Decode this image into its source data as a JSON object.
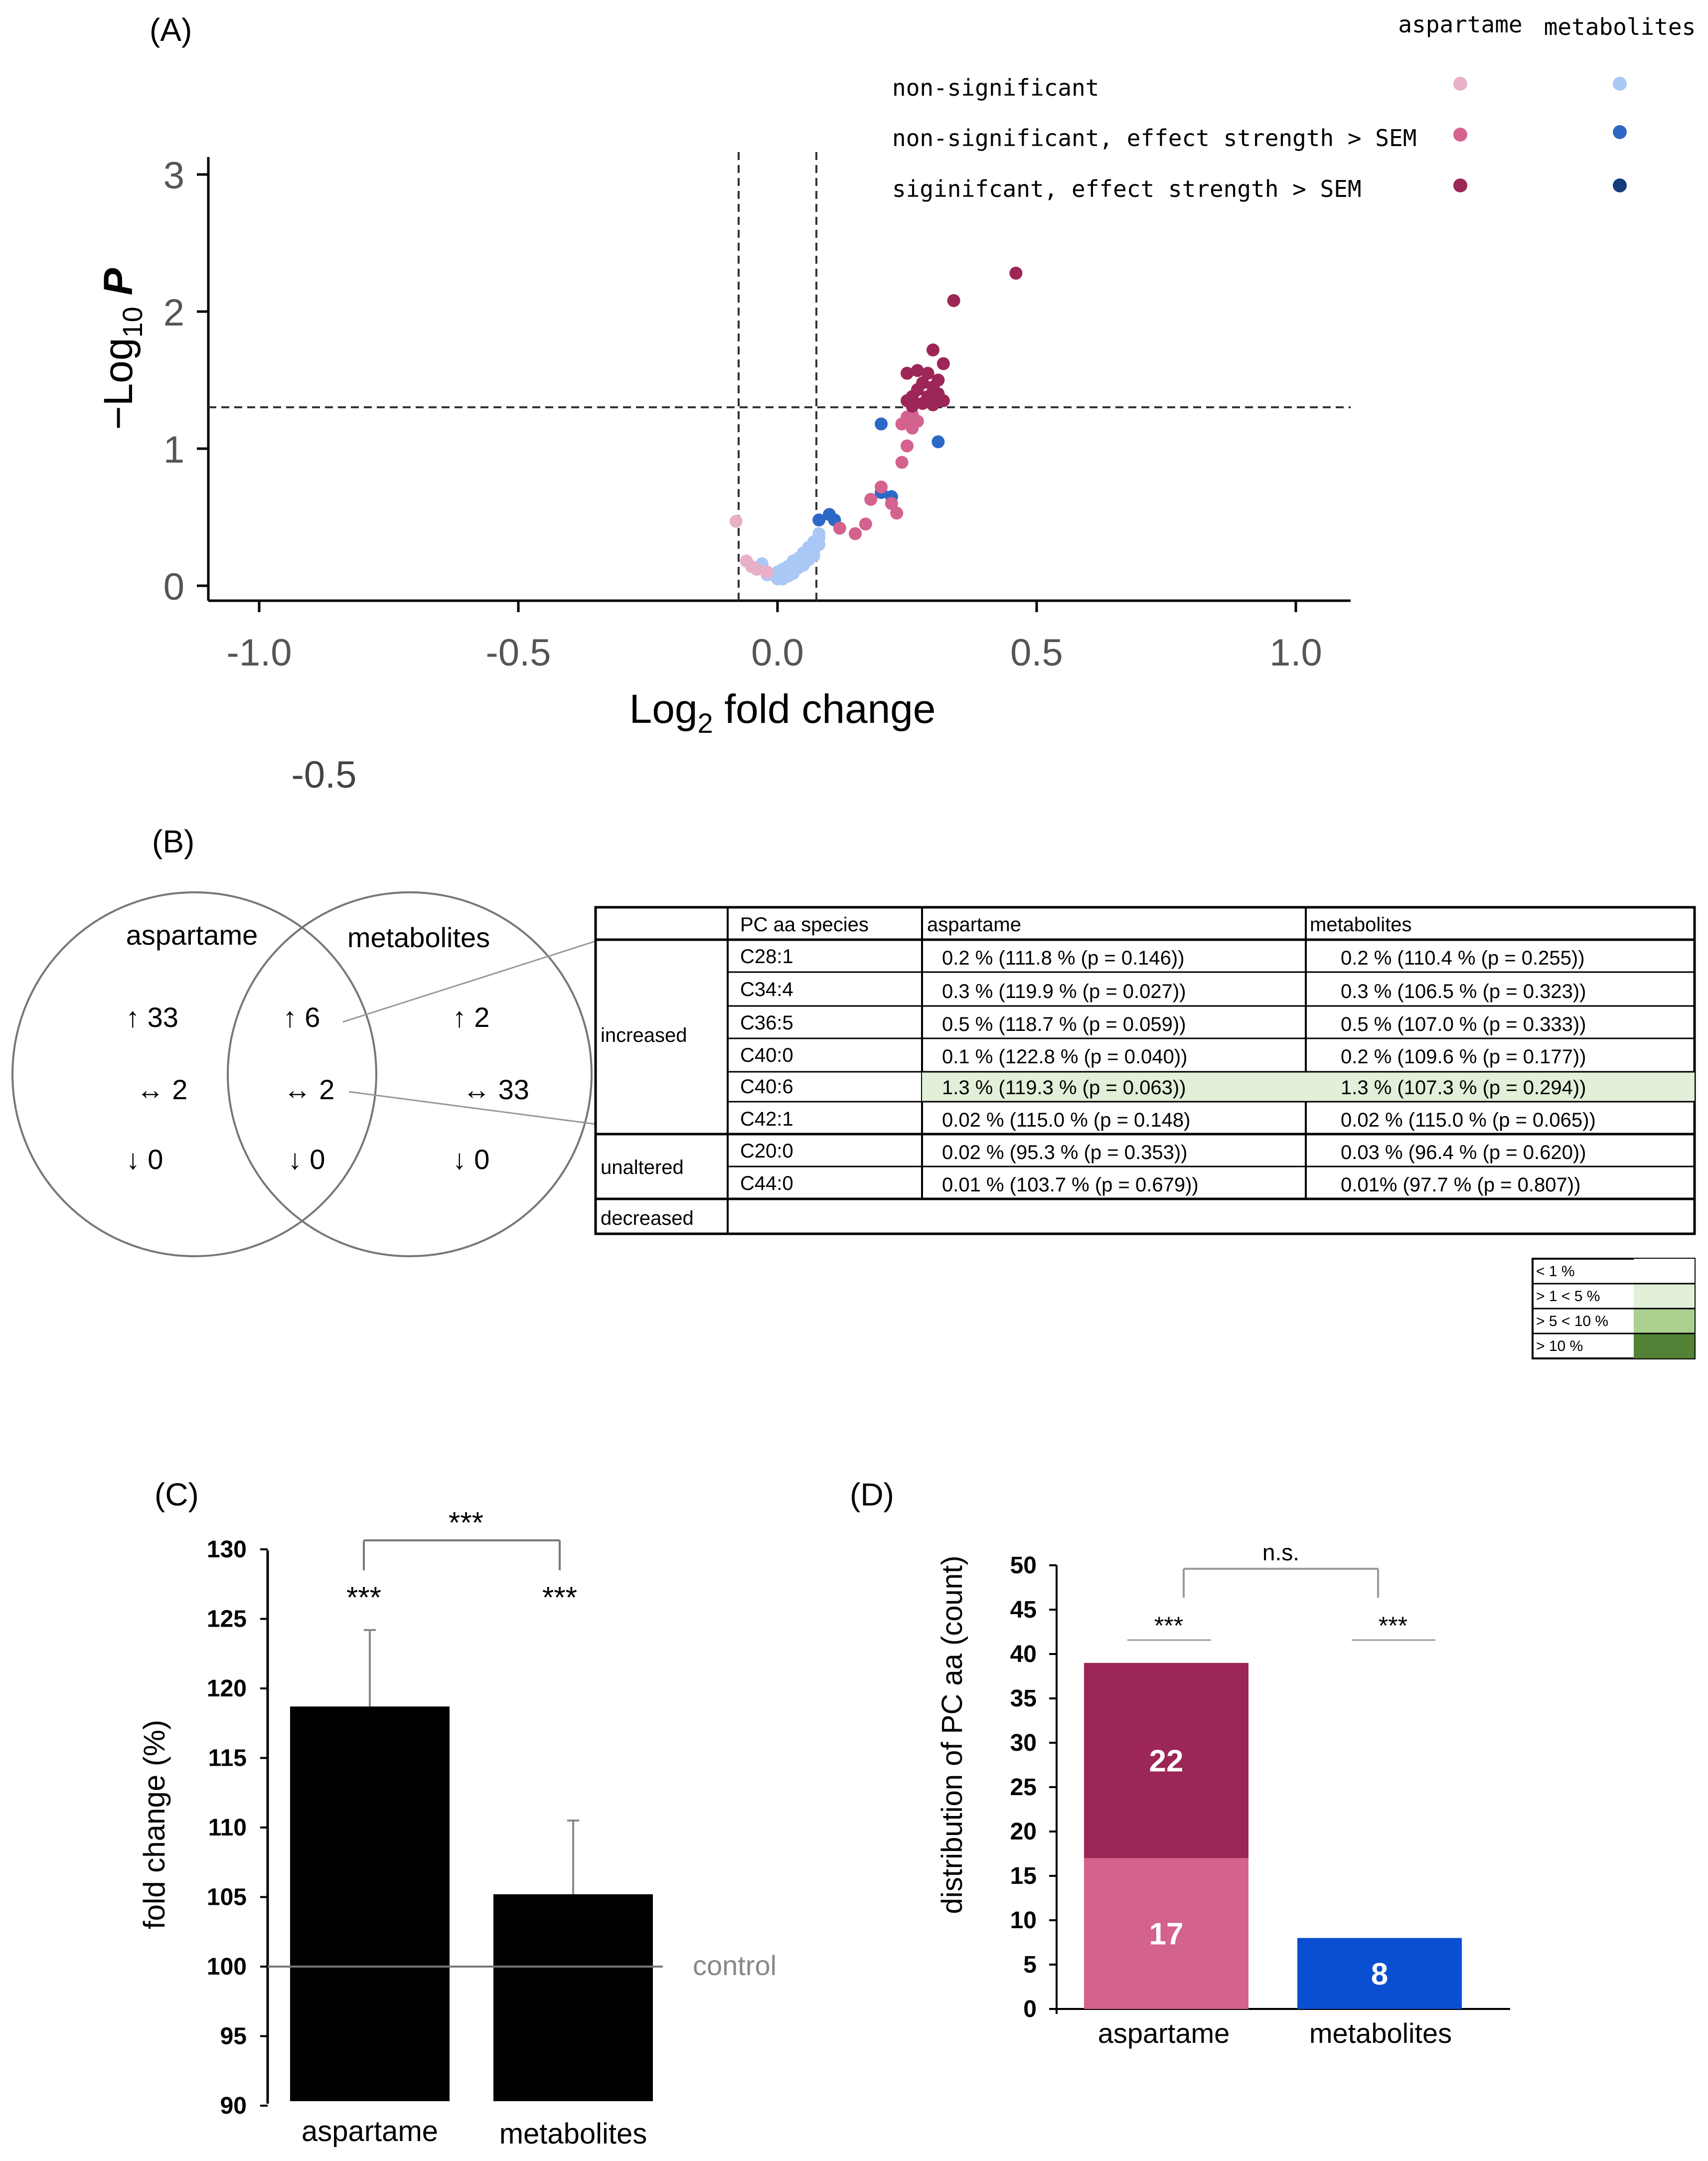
{
  "colors": {
    "asp_nonsig": "#e8afc8",
    "asp_mid": "#d3628e",
    "asp_sig": "#9c2656",
    "met_nonsig": "#a9c8f5",
    "met_mid": "#2c68c6",
    "met_sig": "#143c7c",
    "bar_black": "#000000",
    "bar_asp_mid": "#d3628e",
    "bar_asp_sig": "#9c2656",
    "bar_met": "#0a4fd1",
    "highlight": "#e2efd9",
    "green1": "#e2efd9",
    "green2": "#a9d08e",
    "green3": "#538135"
  },
  "chart_data": [
    {
      "panel": "(A)",
      "type": "scatter",
      "xlabel_main": "Log",
      "xlabel_sub": "2",
      "xlabel_rest": " fold change",
      "ylabel_main": "−Log",
      "ylabel_sub": "10",
      "ylabel_var": " P",
      "xlim": [
        -1.1,
        1.1
      ],
      "ylim": [
        -0.1,
        3.1
      ],
      "xticks": [
        -1.0,
        -0.5,
        0.0,
        0.5,
        1.0
      ],
      "xtick_labels": [
        "-1.0",
        "-0.5",
        "0.0",
        "0.5",
        "1.0"
      ],
      "yticks": [
        0,
        1,
        2,
        3
      ],
      "ytick_labels": [
        "0",
        "1",
        "2",
        "3"
      ],
      "stray_label": "-0.5",
      "threshold_lines": {
        "x": [
          -0.075,
          0.075
        ],
        "y": 1.3
      },
      "legend": {
        "column_headers": [
          "aspartame",
          "metabolites"
        ],
        "entries": [
          {
            "label": "non-significant",
            "asp_color": "#e8afc8",
            "met_color": "#a9c8f5"
          },
          {
            "label": "non-significant, effect strength > SEM",
            "asp_color": "#d3628e",
            "met_color": "#2c68c6"
          },
          {
            "label": "siginifcant, effect strength > SEM",
            "asp_color": "#9c2656",
            "met_color": "#143c7c"
          }
        ]
      },
      "series": [
        {
          "name": "aspartame non-significant",
          "points": [
            [
              -0.08,
              0.47
            ],
            [
              -0.06,
              0.18
            ],
            [
              -0.04,
              0.12
            ],
            [
              -0.02,
              0.1
            ],
            [
              -0.05,
              0.14
            ]
          ]
        },
        {
          "name": "aspartame non-significant, effect strength > SEM",
          "points": [
            [
              0.12,
              0.42
            ],
            [
              0.15,
              0.38
            ],
            [
              0.17,
              0.45
            ],
            [
              0.18,
              0.63
            ],
            [
              0.2,
              0.72
            ],
            [
              0.22,
              0.6
            ],
            [
              0.23,
              0.53
            ],
            [
              0.24,
              0.9
            ],
            [
              0.25,
              1.02
            ],
            [
              0.26,
              1.15
            ],
            [
              0.24,
              1.18
            ],
            [
              0.25,
              1.23
            ],
            [
              0.27,
              1.2
            ],
            [
              0.26,
              1.25
            ]
          ]
        },
        {
          "name": "aspartame siginifcant, effect strength > SEM",
          "points": [
            [
              0.46,
              2.28
            ],
            [
              0.34,
              2.08
            ],
            [
              0.3,
              1.72
            ],
            [
              0.32,
              1.62
            ],
            [
              0.27,
              1.57
            ],
            [
              0.25,
              1.55
            ],
            [
              0.29,
              1.55
            ],
            [
              0.31,
              1.5
            ],
            [
              0.28,
              1.48
            ],
            [
              0.3,
              1.45
            ],
            [
              0.27,
              1.43
            ],
            [
              0.31,
              1.4
            ],
            [
              0.29,
              1.38
            ],
            [
              0.26,
              1.38
            ],
            [
              0.25,
              1.35
            ],
            [
              0.32,
              1.35
            ],
            [
              0.28,
              1.33
            ],
            [
              0.3,
              1.32
            ],
            [
              0.26,
              1.31
            ]
          ]
        },
        {
          "name": "metabolites non-significant",
          "points": [
            [
              -0.03,
              0.16
            ],
            [
              -0.02,
              0.08
            ],
            [
              0.0,
              0.05
            ],
            [
              0.01,
              0.07
            ],
            [
              0.02,
              0.1
            ],
            [
              0.03,
              0.12
            ],
            [
              0.02,
              0.14
            ],
            [
              0.04,
              0.15
            ],
            [
              0.03,
              0.18
            ],
            [
              0.05,
              0.17
            ],
            [
              0.04,
              0.2
            ],
            [
              0.06,
              0.22
            ],
            [
              0.05,
              0.24
            ],
            [
              0.07,
              0.26
            ],
            [
              0.06,
              0.28
            ],
            [
              0.07,
              0.32
            ],
            [
              0.08,
              0.38
            ],
            [
              0.02,
              0.11
            ],
            [
              0.01,
              0.12
            ],
            [
              0.03,
              0.09
            ],
            [
              0.04,
              0.13
            ],
            [
              0.05,
              0.15
            ],
            [
              0.06,
              0.19
            ],
            [
              0.07,
              0.22
            ],
            [
              0.08,
              0.3
            ],
            [
              0.03,
              0.16
            ],
            [
              0.0,
              0.1
            ],
            [
              0.01,
              0.05
            ],
            [
              0.05,
              0.2
            ],
            [
              0.06,
              0.25
            ],
            [
              0.04,
              0.17
            ],
            [
              0.02,
              0.07
            ],
            [
              0.08,
              0.35
            ]
          ]
        },
        {
          "name": "metabolites non-significant, effect strength > SEM",
          "points": [
            [
              0.08,
              0.48
            ],
            [
              0.1,
              0.52
            ],
            [
              0.11,
              0.48
            ],
            [
              0.2,
              1.18
            ],
            [
              0.31,
              1.05
            ],
            [
              0.2,
              0.68
            ],
            [
              0.22,
              0.65
            ]
          ]
        },
        {
          "name": "metabolites siginifcant, effect strength > SEM",
          "points": []
        }
      ]
    },
    {
      "panel": "(C)",
      "type": "bar",
      "categories": [
        "aspartame",
        "metabolites"
      ],
      "values": [
        118.7,
        105.2
      ],
      "errors": [
        5.5,
        5.3
      ],
      "ylabel": "fold change (%)",
      "ylim": [
        90,
        130
      ],
      "yticks": [
        90,
        95,
        100,
        105,
        110,
        115,
        120,
        125,
        130
      ],
      "ytick_labels": [
        "90",
        "95",
        "100",
        "105",
        "110",
        "115",
        "120",
        "125",
        "130"
      ],
      "reference_line": {
        "y": 100,
        "label": "control"
      },
      "significance": {
        "bars": [
          "***",
          "***"
        ],
        "between": "***"
      }
    },
    {
      "panel": "(D)",
      "type": "bar",
      "stacked": true,
      "categories": [
        "aspartame",
        "metabolites"
      ],
      "series": [
        {
          "name": "non-significant, effect strength > SEM",
          "values": [
            17,
            8
          ],
          "color": [
            "#d3628e",
            "#0a4fd1"
          ]
        },
        {
          "name": "siginifcant, effect strength > SEM",
          "values": [
            22,
            0
          ],
          "color": [
            "#9c2656",
            "#9c2656"
          ]
        }
      ],
      "segment_labels": [
        [
          "17",
          "22"
        ],
        [
          "8"
        ]
      ],
      "ylabel": "distribution of PC aa (count)",
      "ylim": [
        0,
        50
      ],
      "yticks": [
        0,
        5,
        10,
        15,
        20,
        25,
        30,
        35,
        40,
        45,
        50
      ],
      "ytick_labels": [
        "0",
        "5",
        "10",
        "15",
        "20",
        "25",
        "30",
        "35",
        "40",
        "45",
        "50"
      ],
      "significance": {
        "bars": [
          "***",
          "***"
        ],
        "between": "n.s."
      }
    }
  ],
  "panels": {
    "a": "(A)",
    "b": "(B)",
    "c": "(C)",
    "d": "(D)"
  },
  "venn": {
    "left_label": "aspartame",
    "right_label": "metabolites",
    "left": {
      "up": "↑ 33",
      "neutral": "↔ 2",
      "down": "↓ 0"
    },
    "overlap": {
      "up": "↑ 6",
      "neutral": "↔ 2",
      "down": "↓ 0"
    },
    "right": {
      "up": "↑ 2",
      "neutral": "↔ 33",
      "down": "↓ 0"
    }
  },
  "table": {
    "headers": [
      "PC aa species",
      "aspartame",
      "metabolites"
    ],
    "groups": [
      {
        "label": "increased",
        "rows": [
          {
            "species": "C28:1",
            "asp": "0.2 % (111.8 % (p = 0.146))",
            "met": "0.2 % (110.4 % (p = 0.255))",
            "highlight": false
          },
          {
            "species": "C34:4",
            "asp": "0.3 % (119.9 % (p = 0.027))",
            "met": "0.3 % (106.5 % (p = 0.323))",
            "highlight": false
          },
          {
            "species": "C36:5",
            "asp": "0.5 % (118.7 % (p = 0.059))",
            "met": "0.5 % (107.0 % (p = 0.333))",
            "highlight": false
          },
          {
            "species": "C40:0",
            "asp": "0.1 % (122.8 % (p = 0.040))",
            "met": "0.2 % (109.6 % (p = 0.177))",
            "highlight": false
          },
          {
            "species": "C40:6",
            "asp": "1.3 % (119.3 % (p = 0.063))",
            "met": "1.3 % (107.3 % (p = 0.294))",
            "highlight": true
          },
          {
            "species": "C42:1",
            "asp": "0.02 % (115.0 % (p = 0.148)",
            "met": "0.02 % (115.0 % (p = 0.065))",
            "highlight": false
          }
        ]
      },
      {
        "label": "unaltered",
        "rows": [
          {
            "species": "C20:0",
            "asp": "0.02 % (95.3 % (p = 0.353))",
            "met": "0.03 % (96.4 % (p = 0.620))",
            "highlight": false
          },
          {
            "species": "C44:0",
            "asp": "0.01 % (103.7 % (p = 0.679))",
            "met": "0.01% (97.7 % (p = 0.807))",
            "highlight": false
          }
        ]
      },
      {
        "label": "decreased",
        "rows": []
      }
    ],
    "color_legend": [
      {
        "label": "< 1 %",
        "color": "#ffffff"
      },
      {
        "label": "> 1 < 5 %",
        "color": "#e2efd9"
      },
      {
        "label": "> 5 < 10 %",
        "color": "#a9d08e"
      },
      {
        "label": "> 10 %",
        "color": "#538135"
      }
    ]
  }
}
